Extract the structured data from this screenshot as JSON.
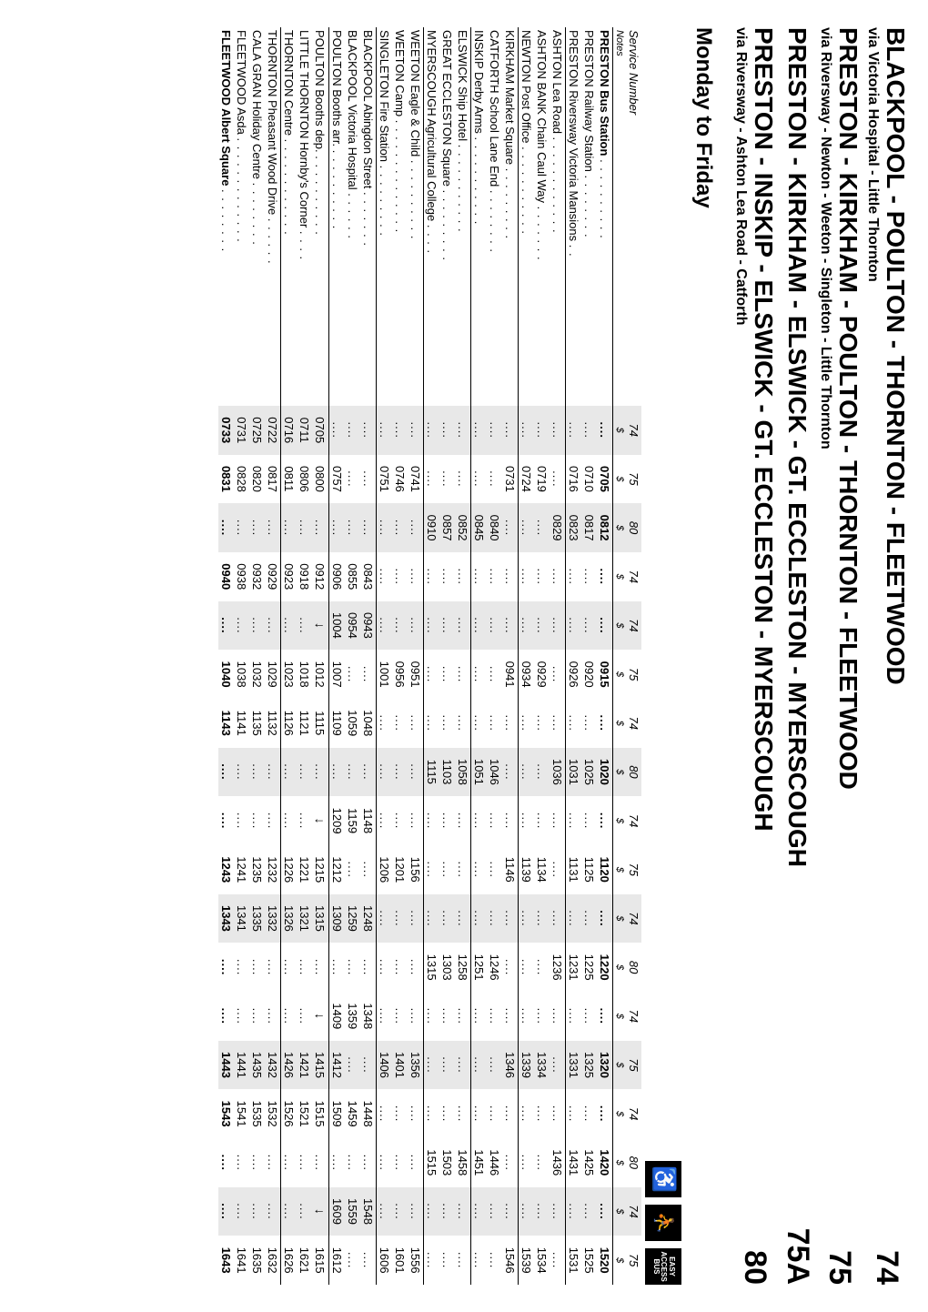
{
  "headers": [
    {
      "title": "BLACKPOOL - POULTON - THORNTON - FLEETWOOD",
      "sub": "via Victoria Hospital - Little Thornton",
      "num": "74"
    },
    {
      "title": "PRESTON - KIRKHAM - POULTON - THORNTON - FLEETWOOD",
      "sub": "via Riversway - Newton - Weeton - Singleton - Little Thornton",
      "num": "75"
    },
    {
      "title": "PRESTON - KIRKHAM - ELSWICK - GT. ECCLESTON - MYERSCOUGH",
      "sub": "",
      "num": "75A"
    },
    {
      "title": "PRESTON - INSKIP - ELSWICK - GT. ECCLESTON - MYERSCOUGH",
      "sub": "via Riversway - Ashton Lea Road - Catforth",
      "num": "80"
    }
  ],
  "day_title": "Monday to Friday",
  "service_label": "Service Number",
  "notes_label": "Notes",
  "services": [
    "74",
    "75",
    "80",
    "74",
    "74",
    "75",
    "74",
    "80",
    "74",
    "75",
    "74",
    "80",
    "74",
    "75",
    "74",
    "80",
    "74",
    "75"
  ],
  "notes": [
    "$",
    "$",
    "$",
    "$",
    "$",
    "$",
    "$",
    "$",
    "$",
    "$",
    "$",
    "$",
    "$",
    "$",
    "$",
    "$",
    "$",
    "$"
  ],
  "stops": [
    {
      "name": "PRESTON Bus Station",
      "bold": true,
      "sep": true,
      "times": [
        "....",
        "0705",
        "0812",
        "....",
        "....",
        "0915",
        "....",
        "1020",
        "....",
        "1120",
        "....",
        "1220",
        "....",
        "1320",
        "....",
        "1420",
        "....",
        "1520"
      ]
    },
    {
      "name": "PRESTON Railway Station",
      "times": [
        "....",
        "0710",
        "0817",
        "....",
        "....",
        "0920",
        "....",
        "1025",
        "....",
        "1125",
        "....",
        "1225",
        "....",
        "1325",
        "....",
        "1425",
        "....",
        "1525"
      ]
    },
    {
      "name": "PRESTON Riversway Victoria Mansions",
      "times": [
        "....",
        "0716",
        "0823",
        "....",
        "....",
        "0926",
        "....",
        "1031",
        "....",
        "1131",
        "....",
        "1231",
        "....",
        "1331",
        "....",
        "1431",
        "....",
        "1531"
      ]
    },
    {
      "name": "ASHTON Lea Road",
      "sep": true,
      "times": [
        "....",
        "....",
        "0829",
        "....",
        "....",
        "....",
        "....",
        "1036",
        "....",
        "....",
        "....",
        "1236",
        "....",
        "....",
        "....",
        "1436",
        "....",
        "...."
      ]
    },
    {
      "name": "ASHTON BANK Chain Caul Way",
      "times": [
        "....",
        "0719",
        "....",
        "....",
        "....",
        "0929",
        "....",
        "....",
        "....",
        "1134",
        "....",
        "....",
        "....",
        "1334",
        "....",
        "....",
        "....",
        "1534"
      ]
    },
    {
      "name": "NEWTON Post Office",
      "times": [
        "....",
        "0724",
        "....",
        "....",
        "....",
        "0934",
        "....",
        "....",
        "....",
        "1139",
        "....",
        "....",
        "....",
        "1339",
        "....",
        "....",
        "....",
        "1539"
      ]
    },
    {
      "name": "KIRKHAM Market Square",
      "sep": true,
      "times": [
        "....",
        "0731",
        "....",
        "....",
        "....",
        "0941",
        "....",
        "....",
        "....",
        "1146",
        "....",
        "....",
        "....",
        "1346",
        "....",
        "....",
        "....",
        "1546"
      ]
    },
    {
      "name": "CATFORTH School Lane End",
      "times": [
        "....",
        "....",
        "0840",
        "....",
        "....",
        "....",
        "....",
        "1046",
        "....",
        "....",
        "....",
        "1246",
        "....",
        "....",
        "....",
        "1446",
        "....",
        "...."
      ]
    },
    {
      "name": "INSKIP Derby Arms",
      "times": [
        "....",
        "....",
        "0845",
        "....",
        "....",
        "....",
        "....",
        "1051",
        "....",
        "....",
        "....",
        "1251",
        "....",
        "....",
        "....",
        "1451",
        "....",
        "...."
      ]
    },
    {
      "name": "ELSWICK Ship Hotel",
      "sep": true,
      "times": [
        "....",
        "....",
        "0852",
        "....",
        "....",
        "....",
        "....",
        "1058",
        "....",
        "....",
        "....",
        "1258",
        "....",
        "....",
        "....",
        "1458",
        "....",
        "...."
      ]
    },
    {
      "name": "GREAT ECCLESTON Square",
      "times": [
        "....",
        "....",
        "0857",
        "....",
        "....",
        "....",
        "....",
        "1103",
        "....",
        "....",
        "....",
        "1303",
        "....",
        "....",
        "....",
        "1503",
        "....",
        "...."
      ]
    },
    {
      "name": "MYERSCOUGH Agricultural College",
      "times": [
        "....",
        "....",
        "0910",
        "....",
        "....",
        "....",
        "....",
        "1115",
        "....",
        "....",
        "....",
        "1315",
        "....",
        "....",
        "....",
        "1515",
        "....",
        "...."
      ]
    },
    {
      "name": "WEETON Eagle & Child",
      "sep": true,
      "times": [
        "....",
        "0741",
        "....",
        "....",
        "....",
        "0951",
        "....",
        "....",
        "....",
        "1156",
        "....",
        "....",
        "....",
        "1356",
        "....",
        "....",
        "....",
        "1556"
      ]
    },
    {
      "name": "WEETON Camp",
      "times": [
        "....",
        "0746",
        "....",
        "....",
        "....",
        "0956",
        "....",
        "....",
        "....",
        "1201",
        "....",
        "....",
        "....",
        "1401",
        "....",
        "....",
        "....",
        "1601"
      ]
    },
    {
      "name": "SINGLETON Fire Station",
      "times": [
        "....",
        "0751",
        "....",
        "....",
        "....",
        "1001",
        "....",
        "....",
        "....",
        "1206",
        "....",
        "....",
        "....",
        "1406",
        "....",
        "....",
        "....",
        "1606"
      ]
    },
    {
      "name": "BLACKPOOL Abingdon Street",
      "sep": true,
      "times": [
        "....",
        "....",
        "....",
        "0843",
        "0943",
        "....",
        "1048",
        "....",
        "1148",
        "....",
        "1248",
        "....",
        "1348",
        "....",
        "1448",
        "....",
        "1548",
        "...."
      ]
    },
    {
      "name": "BLACKPOOL Victoria Hospital",
      "times": [
        "....",
        "....",
        "....",
        "0855",
        "0954",
        "....",
        "1059",
        "....",
        "1159",
        "....",
        "1259",
        "....",
        "1359",
        "....",
        "1459",
        "....",
        "1559",
        "...."
      ]
    },
    {
      "name": "POULTON Booths arr.",
      "times": [
        "....",
        "0757",
        "....",
        "0906",
        "1004",
        "1007",
        "1109",
        "....",
        "1209",
        "1212",
        "1309",
        "....",
        "1409",
        "1412",
        "1509",
        "....",
        "1609",
        "1612"
      ]
    },
    {
      "name": "POULTON Booths dep.",
      "sep": true,
      "times": [
        "0705",
        "0800",
        "....",
        "0912",
        "↓",
        "1012",
        "1115",
        "....",
        "↓",
        "1215",
        "1315",
        "....",
        "↓",
        "1415",
        "1515",
        "....",
        "↓",
        "1615"
      ]
    },
    {
      "name": "LITTLE THORNTON Hornby's Corner",
      "times": [
        "0711",
        "0806",
        "....",
        "0918",
        "....",
        "1018",
        "1121",
        "....",
        "....",
        "1221",
        "1321",
        "....",
        "....",
        "1421",
        "1521",
        "....",
        "....",
        "1621"
      ]
    },
    {
      "name": "THORNTON Centre",
      "times": [
        "0716",
        "0811",
        "....",
        "0923",
        "....",
        "1023",
        "1126",
        "....",
        "....",
        "1226",
        "1326",
        "....",
        "....",
        "1426",
        "1526",
        "....",
        "....",
        "1626"
      ]
    },
    {
      "name": "THORNTON Pheasant Wood Drive",
      "sep": true,
      "times": [
        "0722",
        "0817",
        "....",
        "0929",
        "....",
        "1029",
        "1132",
        "....",
        "....",
        "1232",
        "1332",
        "....",
        "....",
        "1432",
        "1532",
        "....",
        "....",
        "1632"
      ]
    },
    {
      "name": "CALA GRAN Holiday Centre",
      "times": [
        "0725",
        "0820",
        "....",
        "0932",
        "....",
        "1032",
        "1135",
        "....",
        "....",
        "1235",
        "1335",
        "....",
        "....",
        "1435",
        "1535",
        "....",
        "....",
        "1635"
      ]
    },
    {
      "name": "FLEETWOOD Asda",
      "times": [
        "0731",
        "0828",
        "....",
        "0938",
        "....",
        "1038",
        "1141",
        "....",
        "....",
        "1241",
        "1341",
        "....",
        "....",
        "1441",
        "1541",
        "....",
        "....",
        "1641"
      ]
    },
    {
      "name": "FLEETWOOD Albert Square",
      "bold": true,
      "times": [
        "0733",
        "0831",
        "....",
        "0940",
        "....",
        "1040",
        "1143",
        "....",
        "....",
        "1243",
        "1343",
        "....",
        "....",
        "1443",
        "1543",
        "....",
        "....",
        "1643"
      ]
    }
  ],
  "shadeCols": [
    0,
    2,
    4,
    7,
    10,
    13,
    16
  ],
  "icons": {
    "wheelchair": "♿",
    "kneel": "⛤",
    "access": "EASY\nACCESS\nBUS"
  }
}
